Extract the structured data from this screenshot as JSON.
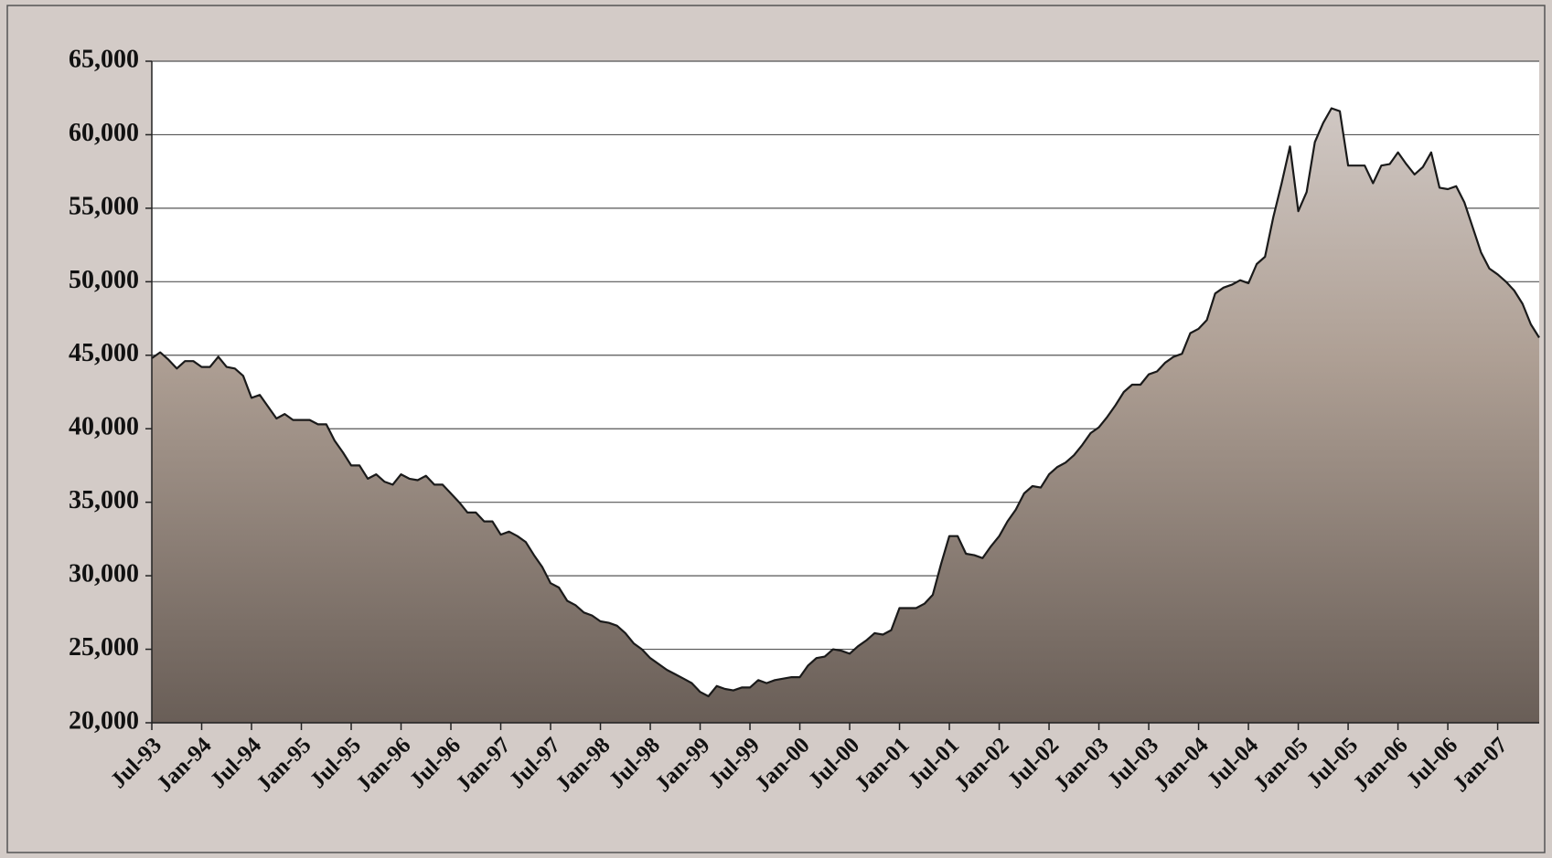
{
  "chart_data": {
    "type": "area",
    "categories": [
      "Jul-93",
      null,
      null,
      null,
      null,
      null,
      "Jan-94",
      null,
      null,
      null,
      null,
      null,
      "Jul-94",
      null,
      null,
      null,
      null,
      null,
      "Jan-95",
      null,
      null,
      null,
      null,
      null,
      "Jul-95",
      null,
      null,
      null,
      null,
      null,
      "Jan-96",
      null,
      null,
      null,
      null,
      null,
      "Jul-96",
      null,
      null,
      null,
      null,
      null,
      "Jan-97",
      null,
      null,
      null,
      null,
      null,
      "Jul-97",
      null,
      null,
      null,
      null,
      null,
      "Jan-98",
      null,
      null,
      null,
      null,
      null,
      "Jul-98",
      null,
      null,
      null,
      null,
      null,
      "Jan-99",
      null,
      null,
      null,
      null,
      null,
      "Jul-99",
      null,
      null,
      null,
      null,
      null,
      "Jan-00",
      null,
      null,
      null,
      null,
      null,
      "Jul-00",
      null,
      null,
      null,
      null,
      null,
      "Jan-01",
      null,
      null,
      null,
      null,
      null,
      "Jul-01",
      null,
      null,
      null,
      null,
      null,
      "Jan-02",
      null,
      null,
      null,
      null,
      null,
      "Jul-02",
      null,
      null,
      null,
      null,
      null,
      "Jan-03",
      null,
      null,
      null,
      null,
      null,
      "Jul-03",
      null,
      null,
      null,
      null,
      null,
      "Jan-04",
      null,
      null,
      null,
      null,
      null,
      "Jul-04",
      null,
      null,
      null,
      null,
      null,
      "Jan-05",
      null,
      null,
      null,
      null,
      null,
      "Jul-05",
      null,
      null,
      null,
      null,
      null,
      "Jan-06",
      null,
      null,
      null,
      null,
      null,
      "Jul-06",
      null,
      null,
      null,
      null,
      null,
      "Jan-07",
      null,
      null,
      null,
      null,
      null
    ],
    "values": [
      44800,
      45200,
      44700,
      44100,
      44600,
      44600,
      44200,
      44200,
      44900,
      44200,
      44100,
      43600,
      42100,
      42300,
      41500,
      40700,
      41000,
      40600,
      40600,
      40600,
      40300,
      40300,
      39200,
      38400,
      37500,
      37500,
      36600,
      36900,
      36400,
      36200,
      36900,
      36600,
      36500,
      36800,
      36200,
      36200,
      35600,
      35000,
      34300,
      34300,
      33700,
      33700,
      32800,
      33000,
      32700,
      32300,
      31400,
      30600,
      29500,
      29200,
      28300,
      28000,
      27500,
      27300,
      26900,
      26800,
      26600,
      26100,
      25400,
      25000,
      24400,
      24000,
      23600,
      23300,
      23000,
      22700,
      22100,
      21800,
      22500,
      22300,
      22200,
      22400,
      22400,
      22900,
      22700,
      22900,
      23000,
      23100,
      23100,
      23900,
      24400,
      24500,
      25000,
      24900,
      24700,
      25200,
      25600,
      26100,
      26000,
      26300,
      27800,
      27800,
      27800,
      28100,
      28700,
      30800,
      32700,
      32700,
      31500,
      31400,
      31200,
      32000,
      32700,
      33700,
      34500,
      35600,
      36100,
      36000,
      36900,
      37400,
      37700,
      38200,
      38900,
      39700,
      40100,
      40800,
      41600,
      42500,
      43000,
      43000,
      43700,
      43900,
      44500,
      44900,
      45100,
      46500,
      46800,
      47400,
      49200,
      49600,
      49800,
      50100,
      49900,
      51200,
      51700,
      54400,
      56700,
      59200,
      54800,
      56100,
      59500,
      60800,
      61800,
      61600,
      57900,
      57900,
      57900,
      56700,
      57900,
      58000,
      58800,
      58000,
      57300,
      57800,
      58800,
      56400,
      56300,
      56500,
      55400,
      53700,
      52000,
      50900,
      50500,
      50000,
      49400,
      48500,
      47100,
      46200
    ],
    "ylim": [
      20000,
      65000
    ],
    "yticks": [
      {
        "value": 20000,
        "label": "20,000"
      },
      {
        "value": 25000,
        "label": "25,000"
      },
      {
        "value": 30000,
        "label": "30,000"
      },
      {
        "value": 35000,
        "label": "35,000"
      },
      {
        "value": 40000,
        "label": "40,000"
      },
      {
        "value": 45000,
        "label": "45,000"
      },
      {
        "value": 50000,
        "label": "50,000"
      },
      {
        "value": 55000,
        "label": "55,000"
      },
      {
        "value": 60000,
        "label": "60,000"
      },
      {
        "value": 65000,
        "label": "65,000"
      }
    ],
    "grid": true,
    "color": "#1a1a1a"
  }
}
